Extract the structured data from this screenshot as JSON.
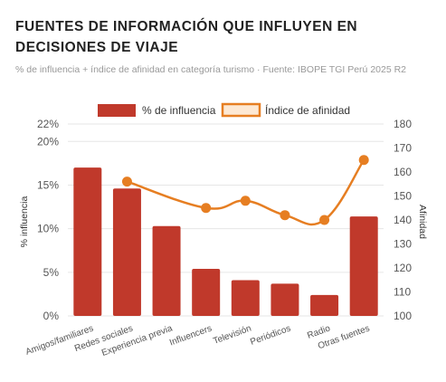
{
  "header": {
    "title": "FUENTES DE INFORMACIÓN QUE INFLUYEN EN DECISIONES DE VIAJE",
    "subtitle": "% de influencia + índice de afinidad en categoría turismo · Fuente: IBOPE TGI Perú 2025 R2"
  },
  "legend": {
    "bar_label": "% de influencia",
    "line_label": "Índice de afinidad"
  },
  "colors": {
    "bar": "#c0392b",
    "line": "#e67e22",
    "grid": "#e6e6e6"
  },
  "chart_data": {
    "type": "bar",
    "categories": [
      "Amigos/familiares",
      "Redes sociales",
      "Experiencia previa",
      "Influencers",
      "Televisión",
      "Periódicos",
      "Radio",
      "Otras fuentes"
    ],
    "series": [
      {
        "name": "% de influencia",
        "type": "bar",
        "axis": "left",
        "values": [
          17.0,
          14.6,
          10.3,
          5.4,
          4.1,
          3.7,
          2.4,
          11.4
        ]
      },
      {
        "name": "Índice de afinidad",
        "type": "line",
        "axis": "right",
        "values": [
          null,
          156,
          null,
          145,
          148,
          142,
          140,
          165
        ]
      }
    ],
    "y_left": {
      "label": "% influencia",
      "ylim": [
        0,
        22
      ],
      "ticks": [
        {
          "v": 0,
          "t": "0%"
        },
        {
          "v": 5,
          "t": "5%"
        },
        {
          "v": 10,
          "t": "10%"
        },
        {
          "v": 15,
          "t": "15%"
        },
        {
          "v": 20,
          "t": "20%"
        },
        {
          "v": 22,
          "t": "22%"
        }
      ]
    },
    "y_right": {
      "label": "Afinidad",
      "ylim": [
        100,
        180
      ],
      "ticks": [
        {
          "v": 100,
          "t": "100"
        },
        {
          "v": 110,
          "t": "110"
        },
        {
          "v": 120,
          "t": "120"
        },
        {
          "v": 130,
          "t": "130"
        },
        {
          "v": 140,
          "t": "140"
        },
        {
          "v": 150,
          "t": "150"
        },
        {
          "v": 160,
          "t": "160"
        },
        {
          "v": 170,
          "t": "170"
        },
        {
          "v": 180,
          "t": "180"
        }
      ]
    },
    "legend_position": "top-center",
    "grid": true
  }
}
